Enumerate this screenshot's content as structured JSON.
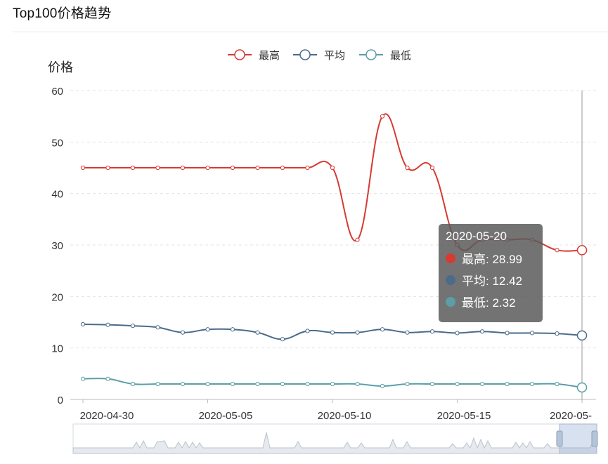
{
  "page": {
    "title": "Top100价格趋势"
  },
  "chart_data": {
    "type": "line",
    "ylabel": "价格",
    "ylim": [
      0,
      60
    ],
    "yticks": [
      0,
      10,
      20,
      30,
      40,
      50,
      60
    ],
    "grid": "horizontal dashed",
    "legend_position": "top-center",
    "x": [
      "2020-04-30",
      "2020-05-01",
      "2020-05-02",
      "2020-05-03",
      "2020-05-04",
      "2020-05-05",
      "2020-05-06",
      "2020-05-07",
      "2020-05-08",
      "2020-05-09",
      "2020-05-10",
      "2020-05-11",
      "2020-05-12",
      "2020-05-13",
      "2020-05-14",
      "2020-05-15",
      "2020-05-16",
      "2020-05-17",
      "2020-05-18",
      "2020-05-19",
      "2020-05-20"
    ],
    "xtick_labels": [
      "2020-04-30",
      "2020-05-05",
      "2020-05-10",
      "2020-05-15",
      "2020-05-"
    ],
    "series": [
      {
        "name": "最高",
        "color": "#d63a32",
        "values": [
          45,
          45,
          45,
          45,
          45,
          45,
          45,
          45,
          45,
          45,
          45,
          31,
          55,
          45,
          45,
          30,
          31,
          31,
          31,
          29,
          28.99
        ]
      },
      {
        "name": "平均",
        "color": "#4a6b8a",
        "values": [
          14.6,
          14.5,
          14.3,
          14.0,
          13.0,
          13.6,
          13.6,
          13.0,
          11.7,
          13.3,
          13.0,
          13.0,
          13.6,
          13.0,
          13.2,
          12.9,
          13.2,
          12.9,
          12.9,
          12.8,
          12.42
        ]
      },
      {
        "name": "最低",
        "color": "#5b9ea6",
        "values": [
          4,
          4,
          3,
          3,
          3,
          3,
          3,
          3,
          3,
          3,
          3,
          3,
          2.6,
          3,
          3,
          3,
          3,
          3,
          3,
          3,
          2.32
        ]
      }
    ],
    "tooltip": {
      "date": "2020-05-20",
      "rows": [
        {
          "label": "最高: 28.99",
          "color": "#d63a32"
        },
        {
          "label": "平均: 12.42",
          "color": "#4a6b8a"
        },
        {
          "label": "最低: 2.32",
          "color": "#5b9ea6"
        }
      ]
    },
    "datazoom": {
      "overview_values": [
        0,
        0,
        0,
        0,
        0,
        0,
        0,
        0,
        0,
        0,
        0,
        0,
        0,
        0,
        0,
        0,
        0,
        0,
        0,
        0,
        0,
        0,
        0,
        0,
        0,
        0,
        0,
        0,
        0,
        0,
        0,
        0,
        0,
        0,
        0,
        0,
        0,
        0,
        0,
        0,
        0,
        0,
        0,
        0,
        0,
        0,
        0,
        0,
        0,
        0,
        0,
        0,
        0,
        0,
        0,
        0,
        0,
        0,
        0,
        0,
        0,
        0,
        0,
        0,
        0,
        0,
        0,
        0,
        0,
        0,
        0,
        0,
        0,
        0,
        0,
        0,
        0,
        0,
        0,
        0,
        0,
        0,
        0,
        0,
        0,
        0,
        0,
        0,
        0,
        0,
        0,
        0,
        0,
        0,
        0,
        0,
        0,
        0,
        0,
        0,
        0,
        0,
        0,
        0,
        0,
        0,
        0,
        0,
        0,
        0,
        0,
        0,
        0,
        0,
        0,
        0,
        0,
        0,
        0,
        0,
        0,
        0,
        0,
        0,
        0,
        0,
        0,
        0,
        0,
        0,
        0,
        0,
        0,
        0,
        0,
        0,
        0,
        0,
        0,
        0,
        0,
        0,
        0,
        0,
        0,
        0,
        0,
        0,
        0,
        0
      ]
    }
  }
}
